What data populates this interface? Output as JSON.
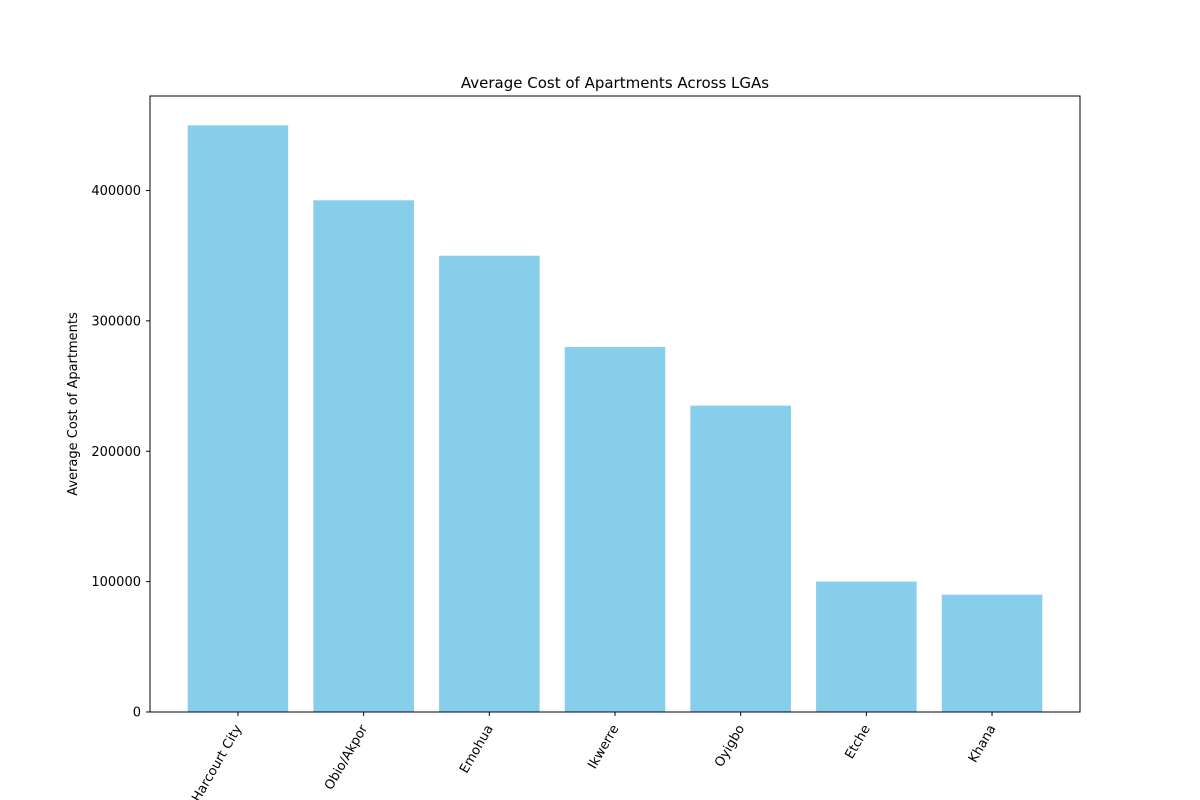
{
  "chart_data": {
    "type": "bar",
    "title": "Average Cost of Apartments Across LGAs",
    "xlabel": "",
    "ylabel": "Average Cost of Apartments",
    "categories": [
      "Port Harcourt City",
      "Obio/Akpor",
      "Emohua",
      "Ikwerre",
      "Oyigbo",
      "Etche",
      "Khana"
    ],
    "values": [
      450000,
      392500,
      350000,
      280000,
      235000,
      100000,
      90000
    ],
    "ylim": [
      0,
      472500
    ],
    "yticks": [
      0,
      100000,
      200000,
      300000,
      400000
    ],
    "grid": false,
    "colors": {
      "bar": "#87ceeb",
      "axis": "#000000"
    }
  }
}
